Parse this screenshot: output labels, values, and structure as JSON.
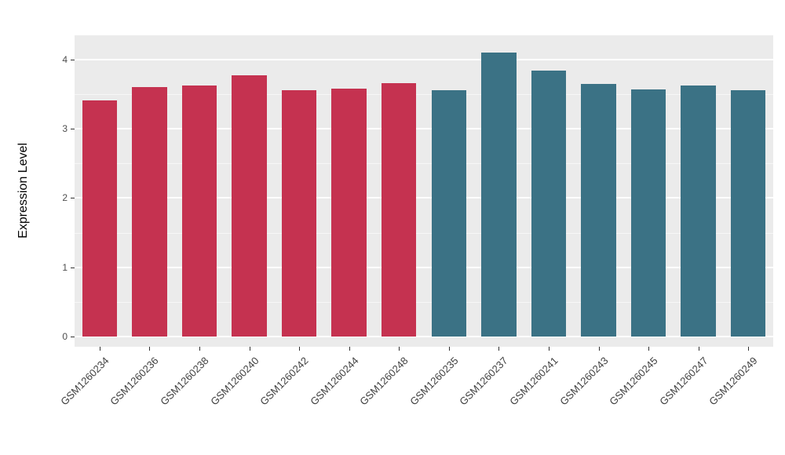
{
  "chart_data": {
    "type": "bar",
    "title": "",
    "xlabel": "",
    "ylabel": "Expression Level",
    "categories": [
      "GSM1260234",
      "GSM1260236",
      "GSM1260238",
      "GSM1260240",
      "GSM1260242",
      "GSM1260244",
      "GSM1260248",
      "GSM1260235",
      "GSM1260237",
      "GSM1260241",
      "GSM1260243",
      "GSM1260245",
      "GSM1260247",
      "GSM1260249"
    ],
    "values": [
      3.41,
      3.6,
      3.62,
      3.77,
      3.56,
      3.58,
      3.66,
      3.56,
      4.1,
      3.84,
      3.65,
      3.57,
      3.63,
      3.56
    ],
    "bar_colors": [
      "#C53250",
      "#C53250",
      "#C53250",
      "#C53250",
      "#C53250",
      "#C53250",
      "#C53250",
      "#3B7285",
      "#3B7285",
      "#3B7285",
      "#3B7285",
      "#3B7285",
      "#3B7285",
      "#3B7285"
    ],
    "groups": [
      {
        "name": "red-group",
        "color": "#C53250",
        "categories": [
          "GSM1260234",
          "GSM1260236",
          "GSM1260238",
          "GSM1260240",
          "GSM1260242",
          "GSM1260244",
          "GSM1260248"
        ]
      },
      {
        "name": "teal-group",
        "color": "#3B7285",
        "categories": [
          "GSM1260235",
          "GSM1260237",
          "GSM1260241",
          "GSM1260243",
          "GSM1260245",
          "GSM1260247",
          "GSM1260249"
        ]
      }
    ],
    "ylim": [
      0,
      4.35
    ],
    "yticks": [
      "0",
      "1",
      "2",
      "3",
      "4"
    ],
    "minor_gridlines": [
      0.5,
      1.5,
      2.5,
      3.5
    ],
    "grid": true,
    "legend": "none",
    "panel_background": "#EBEBEB",
    "gridline_color": "#FFFFFF"
  }
}
